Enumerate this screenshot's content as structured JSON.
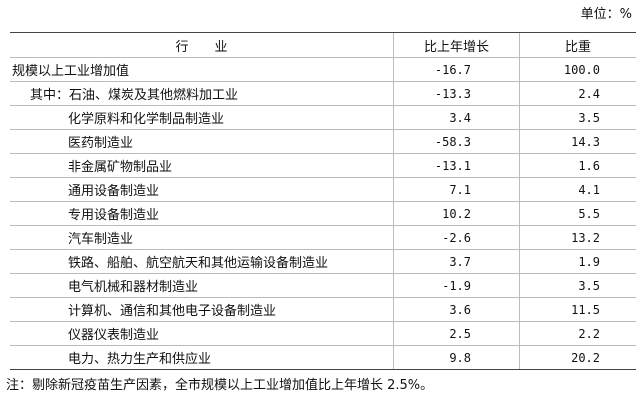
{
  "unit": "单位：%",
  "table": {
    "header": [
      "行　　业",
      "比上年增长",
      "比重"
    ],
    "rows": [
      [
        "规模以上工业增加值",
        "-16.7",
        "100.0"
      ],
      [
        "其中：石油、煤炭及其他燃料加工业",
        "-13.3",
        "2.4"
      ],
      [
        "化学原料和化学制品制造业",
        "3.4",
        "3.5"
      ],
      [
        "医药制造业",
        "-58.3",
        "14.3"
      ],
      [
        "非金属矿物制品业",
        "-13.1",
        "1.6"
      ],
      [
        "通用设备制造业",
        "7.1",
        "4.1"
      ],
      [
        "专用设备制造业",
        "10.2",
        "5.5"
      ],
      [
        "汽车制造业",
        "-2.6",
        "13.2"
      ],
      [
        "铁路、船舶、航空航天和其他运输设备制造业",
        "3.7",
        "1.9"
      ],
      [
        "电气机械和器材制造业",
        "-1.9",
        "3.5"
      ],
      [
        "计算机、通信和其他电子设备制造业",
        "3.6",
        "11.5"
      ],
      [
        "仪器仪表制造业",
        "2.5",
        "2.2"
      ],
      [
        "电力、热力生产和供应业",
        "9.8",
        "20.2"
      ]
    ]
  },
  "note": "注：剔除新冠疫苗生产因素，全市规模以上工业增加值比上年增长 2.5%。"
}
